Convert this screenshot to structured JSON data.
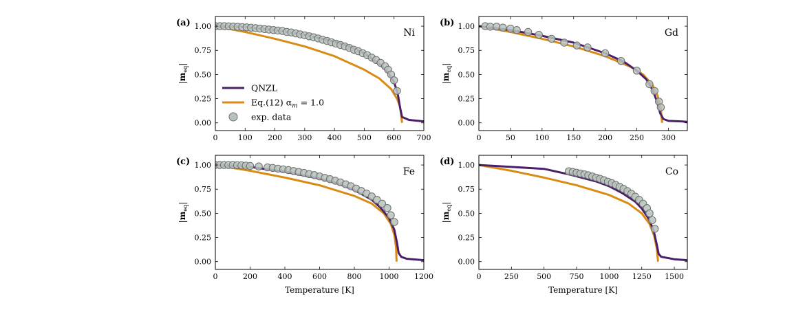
{
  "colors": {
    "qnzl": "#4a1f6a",
    "eq12": "#d98b14",
    "exp_fill": "#b8c2bd",
    "exp_stroke": "#6b706d"
  },
  "legend": {
    "items": [
      {
        "label": "QNZL",
        "kind": "line",
        "color": "#4a1f6a"
      },
      {
        "label": "Eq.(12) α",
        "sub": "m",
        "suffix": " = 1.0",
        "kind": "line",
        "color": "#d98b14"
      },
      {
        "label": "exp. data",
        "kind": "marker",
        "color": "#b8c2bd"
      }
    ]
  },
  "chart_data": [
    {
      "type": "line",
      "tag": "(a)",
      "element": "Ni",
      "ylabel": "|m_eq|",
      "xlabel": "",
      "xlim": [
        0,
        700
      ],
      "ylim": [
        -0.08,
        1.1
      ],
      "xticks": [
        0,
        100,
        200,
        300,
        400,
        500,
        600,
        700
      ],
      "yticks": [
        "0.00",
        "0.25",
        "0.50",
        "0.75",
        "1.00"
      ],
      "legend_shown": true,
      "series": [
        {
          "name": "QNZL",
          "x": [
            0,
            100,
            200,
            300,
            400,
            450,
            500,
            550,
            580,
            600,
            612,
            620,
            627,
            650,
            700
          ],
          "y": [
            1.0,
            0.99,
            0.96,
            0.91,
            0.84,
            0.79,
            0.72,
            0.61,
            0.52,
            0.42,
            0.31,
            0.16,
            0.06,
            0.03,
            0.015
          ]
        },
        {
          "name": "Eq.(12) α_m = 1.0",
          "x": [
            0,
            100,
            200,
            300,
            400,
            500,
            550,
            590,
            610,
            620,
            627
          ],
          "y": [
            1.0,
            0.94,
            0.87,
            0.79,
            0.69,
            0.55,
            0.46,
            0.35,
            0.25,
            0.17,
            0.0
          ]
        },
        {
          "name": "exp. data",
          "x": [
            0,
            15,
            30,
            45,
            60,
            75,
            90,
            105,
            120,
            135,
            150,
            165,
            180,
            195,
            210,
            225,
            240,
            255,
            270,
            285,
            300,
            315,
            330,
            345,
            360,
            375,
            390,
            405,
            420,
            435,
            450,
            465,
            480,
            495,
            510,
            525,
            540,
            555,
            570,
            580,
            590,
            600,
            610
          ],
          "y": [
            1.0,
            1.0,
            1.0,
            0.998,
            0.996,
            0.994,
            0.99,
            0.988,
            0.984,
            0.98,
            0.975,
            0.97,
            0.965,
            0.96,
            0.955,
            0.95,
            0.94,
            0.935,
            0.925,
            0.915,
            0.905,
            0.895,
            0.885,
            0.873,
            0.86,
            0.847,
            0.833,
            0.82,
            0.805,
            0.79,
            0.775,
            0.757,
            0.74,
            0.72,
            0.7,
            0.675,
            0.65,
            0.62,
            0.585,
            0.55,
            0.5,
            0.44,
            0.33
          ]
        }
      ]
    },
    {
      "type": "line",
      "tag": "(b)",
      "element": "Gd",
      "ylabel": "|m_eq|",
      "xlabel": "",
      "xlim": [
        0,
        330
      ],
      "ylim": [
        -0.08,
        1.1
      ],
      "xticks": [
        0,
        50,
        100,
        150,
        200,
        250,
        300
      ],
      "yticks": [
        "0.00",
        "0.25",
        "0.50",
        "0.75",
        "1.00"
      ],
      "legend_shown": false,
      "series": [
        {
          "name": "QNZL",
          "x": [
            0,
            50,
            100,
            150,
            200,
            230,
            250,
            265,
            275,
            282,
            287,
            292,
            300,
            320,
            330
          ],
          "y": [
            1.0,
            0.96,
            0.9,
            0.83,
            0.72,
            0.63,
            0.54,
            0.45,
            0.34,
            0.22,
            0.1,
            0.04,
            0.02,
            0.015,
            0.01
          ]
        },
        {
          "name": "Eq.(12) α_m = 1.0",
          "x": [
            0,
            50,
            100,
            150,
            200,
            240,
            260,
            275,
            283,
            288,
            290
          ],
          "y": [
            1.0,
            0.94,
            0.87,
            0.79,
            0.69,
            0.58,
            0.5,
            0.39,
            0.28,
            0.15,
            0.0
          ]
        },
        {
          "name": "exp. data",
          "x": [
            10,
            18,
            28,
            38,
            50,
            60,
            78,
            95,
            115,
            135,
            155,
            172,
            200,
            225,
            250,
            270,
            278,
            285,
            288
          ],
          "y": [
            1.0,
            0.995,
            0.995,
            0.985,
            0.975,
            0.96,
            0.94,
            0.91,
            0.87,
            0.83,
            0.8,
            0.78,
            0.72,
            0.64,
            0.54,
            0.4,
            0.33,
            0.22,
            0.16
          ]
        }
      ]
    },
    {
      "type": "line",
      "tag": "(c)",
      "element": "Fe",
      "ylabel": "|m_eq|",
      "xlabel": "Temperature [K]",
      "xlim": [
        0,
        1200
      ],
      "ylim": [
        -0.08,
        1.1
      ],
      "xticks": [
        0,
        200,
        400,
        600,
        800,
        1000,
        1200
      ],
      "yticks": [
        "0.00",
        "0.25",
        "0.50",
        "0.75",
        "1.00"
      ],
      "legend_shown": false,
      "series": [
        {
          "name": "QNZL",
          "x": [
            0,
            200,
            400,
            600,
            700,
            800,
            900,
            950,
            1000,
            1030,
            1045,
            1055,
            1070,
            1100,
            1200
          ],
          "y": [
            1.0,
            0.98,
            0.93,
            0.86,
            0.81,
            0.74,
            0.64,
            0.56,
            0.45,
            0.33,
            0.2,
            0.09,
            0.05,
            0.03,
            0.015
          ]
        },
        {
          "name": "Eq.(12) α_m = 1.0",
          "x": [
            0,
            200,
            400,
            600,
            800,
            900,
            970,
            1010,
            1030,
            1040,
            1043
          ],
          "y": [
            1.0,
            0.94,
            0.87,
            0.79,
            0.68,
            0.6,
            0.5,
            0.39,
            0.28,
            0.15,
            0.0
          ]
        },
        {
          "name": "exp. data",
          "x": [
            0,
            25,
            50,
            75,
            100,
            125,
            150,
            175,
            200,
            250,
            300,
            330,
            360,
            390,
            420,
            450,
            480,
            510,
            540,
            570,
            600,
            630,
            660,
            690,
            720,
            750,
            780,
            810,
            840,
            870,
            900,
            930,
            960,
            990,
            1010,
            1030
          ],
          "y": [
            1.0,
            1.0,
            1.0,
            1.0,
            1.0,
            0.998,
            0.996,
            0.994,
            0.99,
            0.985,
            0.975,
            0.97,
            0.962,
            0.955,
            0.947,
            0.938,
            0.928,
            0.918,
            0.906,
            0.895,
            0.882,
            0.867,
            0.853,
            0.837,
            0.82,
            0.8,
            0.78,
            0.757,
            0.732,
            0.705,
            0.675,
            0.64,
            0.6,
            0.555,
            0.48,
            0.41
          ]
        }
      ]
    },
    {
      "type": "line",
      "tag": "(d)",
      "element": "Co",
      "ylabel": "|m_eq|",
      "xlabel": "Temperature [K]",
      "xlim": [
        0,
        1600
      ],
      "ylim": [
        -0.08,
        1.1
      ],
      "xticks": [
        0,
        250,
        500,
        750,
        1000,
        1250,
        1500
      ],
      "yticks": [
        "0.00",
        "0.25",
        "0.50",
        "0.75",
        "1.00"
      ],
      "legend_shown": false,
      "series": [
        {
          "name": "QNZL",
          "x": [
            0,
            250,
            500,
            700,
            900,
            1000,
            1100,
            1200,
            1250,
            1300,
            1340,
            1365,
            1380,
            1400,
            1500,
            1600
          ],
          "y": [
            1.0,
            0.98,
            0.96,
            0.9,
            0.83,
            0.78,
            0.71,
            0.62,
            0.55,
            0.45,
            0.33,
            0.18,
            0.08,
            0.05,
            0.025,
            0.015
          ]
        },
        {
          "name": "Eq.(12) α_m = 1.0",
          "x": [
            0,
            250,
            500,
            750,
            1000,
            1150,
            1250,
            1310,
            1345,
            1365,
            1375
          ],
          "y": [
            1.0,
            0.94,
            0.87,
            0.79,
            0.69,
            0.6,
            0.5,
            0.39,
            0.27,
            0.14,
            0.0
          ]
        },
        {
          "name": "exp. data",
          "x": [
            690,
            720,
            750,
            780,
            810,
            840,
            870,
            900,
            930,
            960,
            990,
            1020,
            1050,
            1080,
            1110,
            1140,
            1170,
            1200,
            1230,
            1260,
            1290,
            1310,
            1330,
            1350
          ],
          "y": [
            0.935,
            0.928,
            0.92,
            0.912,
            0.903,
            0.893,
            0.882,
            0.87,
            0.857,
            0.843,
            0.828,
            0.812,
            0.795,
            0.775,
            0.753,
            0.73,
            0.703,
            0.673,
            0.64,
            0.6,
            0.555,
            0.5,
            0.43,
            0.34
          ]
        }
      ]
    }
  ]
}
